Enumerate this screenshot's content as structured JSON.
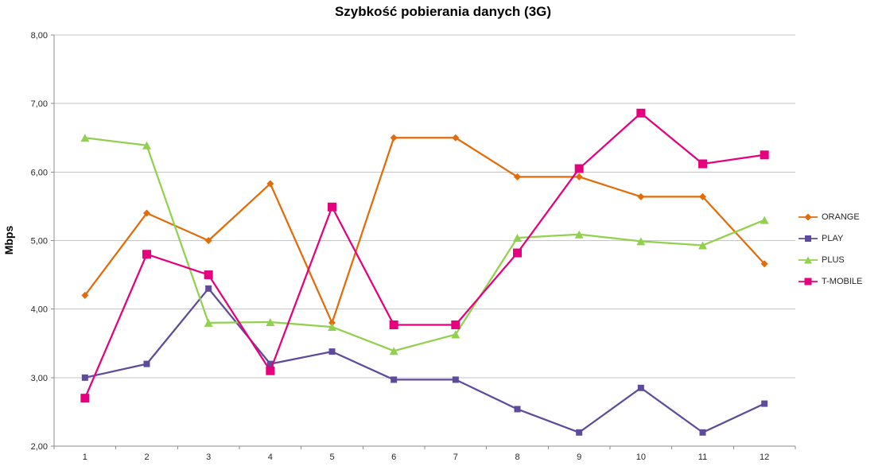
{
  "chart_data": {
    "type": "line",
    "title": "Szybkość pobierania danych (3G)",
    "ylabel": "Mbps",
    "xlabel": "",
    "ylim": [
      2,
      8
    ],
    "ytick_step": 1,
    "grid": true,
    "legend_position": "right",
    "colors": {
      "gridline": "#c6c6c6",
      "axis": "#8c8c8c",
      "background": "#ffffff"
    },
    "categories": [
      "1",
      "2",
      "3",
      "4",
      "5",
      "6",
      "7",
      "8",
      "9",
      "10",
      "11",
      "12"
    ],
    "series": [
      {
        "name": "ORANGE",
        "color": "#E36C0A",
        "marker": "diamond",
        "marker_size": 4.5,
        "values": [
          4.2,
          5.4,
          5.0,
          5.83,
          3.8,
          6.5,
          6.5,
          5.93,
          5.93,
          5.64,
          5.64,
          4.66
        ]
      },
      {
        "name": "PLAY",
        "color": "#5F4B9B",
        "marker": "square",
        "marker_size": 4,
        "values": [
          3.0,
          3.2,
          4.3,
          3.2,
          3.38,
          2.97,
          2.97,
          2.54,
          2.2,
          2.85,
          2.2,
          2.62
        ]
      },
      {
        "name": "PLUS",
        "color": "#92D050",
        "marker": "triangle",
        "marker_size": 5,
        "values": [
          6.5,
          6.39,
          3.8,
          3.81,
          3.74,
          3.39,
          3.63,
          5.04,
          5.09,
          4.99,
          4.93,
          5.3
        ]
      },
      {
        "name": "T-MOBILE",
        "color": "#E6007E",
        "marker": "square",
        "marker_size": 5.5,
        "values": [
          2.7,
          4.8,
          4.5,
          3.1,
          5.49,
          3.77,
          3.77,
          4.82,
          6.05,
          6.86,
          6.12,
          6.25
        ]
      }
    ]
  }
}
